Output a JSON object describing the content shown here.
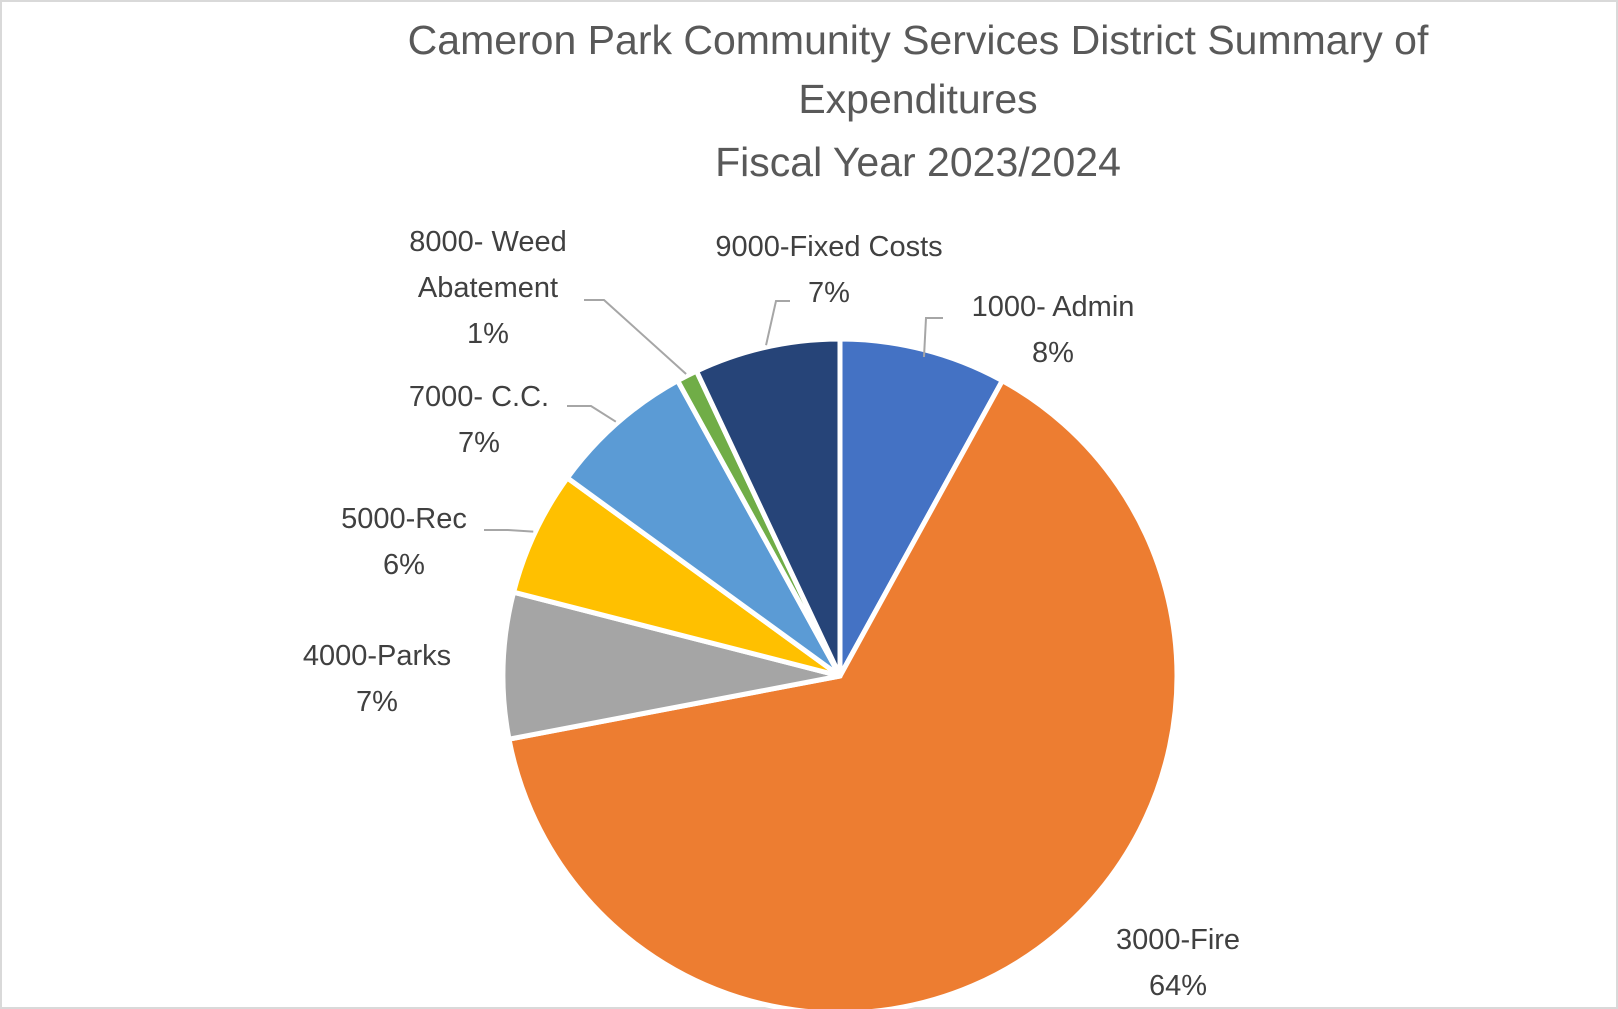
{
  "chart_data": {
    "type": "pie",
    "title": "Cameron Park Community Services District Summary of Expenditures",
    "subtitle": "Fiscal Year 2023/2024",
    "legend": "none",
    "series": [
      {
        "slices": [
          {
            "name": "1000- Admin",
            "value": 8,
            "label": "8%",
            "color": "#4472C4"
          },
          {
            "name": "3000-Fire",
            "value": 64,
            "label": "64%",
            "color": "#ED7D31"
          },
          {
            "name": "4000-Parks",
            "value": 7,
            "label": "7%",
            "color": "#A5A5A5"
          },
          {
            "name": "5000-Rec",
            "value": 6,
            "label": "6%",
            "color": "#FFC000"
          },
          {
            "name": "7000- C.C.",
            "value": 7,
            "label": "7%",
            "color": "#5B9BD5"
          },
          {
            "name": "8000- Weed Abatement",
            "value": 1,
            "label": "1%",
            "color": "#70AD47"
          },
          {
            "name": "9000-Fixed Costs",
            "value": 7,
            "label": "7%",
            "color": "#264478"
          }
        ]
      }
    ]
  }
}
